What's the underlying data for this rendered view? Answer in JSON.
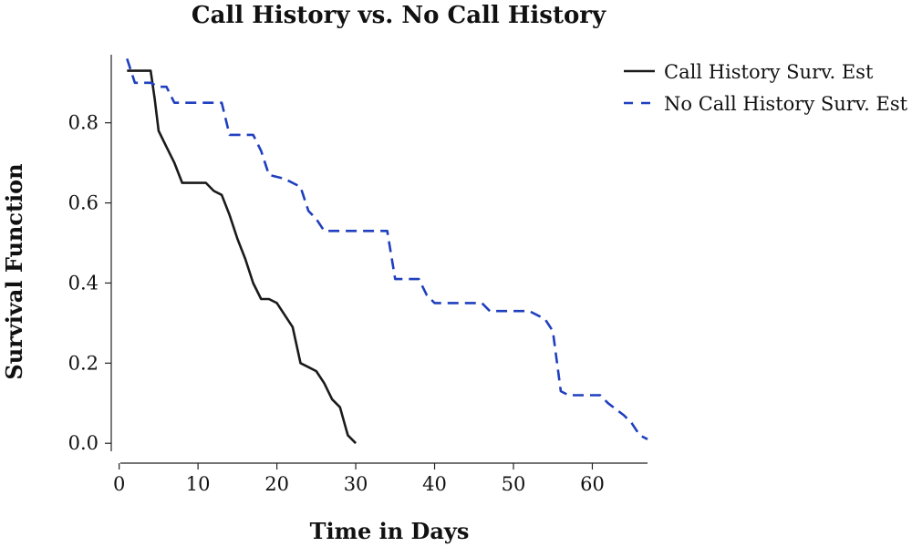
{
  "chart_data": {
    "type": "line",
    "title": "Call History vs. No Call History",
    "xlabel": "Time in Days",
    "ylabel": "Survival Function",
    "xlim": [
      -1,
      67
    ],
    "ylim": [
      -0.02,
      0.97
    ],
    "xticks": [
      0,
      10,
      20,
      30,
      40,
      50,
      60
    ],
    "yticks": [
      0.0,
      0.2,
      0.4,
      0.6,
      0.8
    ],
    "ytick_labels": [
      "0.0",
      "0.2",
      "0.4",
      "0.6",
      "0.8"
    ],
    "grid": false,
    "legend_position": "top-right",
    "series": [
      {
        "name": "Call History Surv. Est",
        "style": "solid",
        "color": "#1a1a1a",
        "x": [
          1,
          4,
          4.5,
          5,
          6,
          7,
          8,
          11,
          12,
          13,
          14,
          15,
          16,
          17,
          18,
          19,
          20,
          21,
          22,
          23,
          24,
          25,
          26,
          27,
          28,
          29,
          30
        ],
        "y": [
          0.93,
          0.93,
          0.86,
          0.78,
          0.74,
          0.7,
          0.65,
          0.65,
          0.63,
          0.62,
          0.57,
          0.51,
          0.46,
          0.4,
          0.36,
          0.36,
          0.35,
          0.32,
          0.29,
          0.2,
          0.19,
          0.18,
          0.15,
          0.11,
          0.09,
          0.02,
          0.0
        ]
      },
      {
        "name": "No Call History Surv. Est",
        "style": "dashed",
        "color": "#1f3fbf",
        "x": [
          1,
          2,
          4,
          5,
          6,
          7,
          13,
          14,
          17,
          18,
          19,
          21,
          22,
          23,
          24,
          25,
          26,
          27,
          34,
          35,
          38,
          39,
          40,
          46,
          47,
          52,
          54,
          55,
          56,
          57,
          61,
          62,
          64,
          65,
          66,
          67
        ],
        "y": [
          0.96,
          0.9,
          0.9,
          0.89,
          0.89,
          0.85,
          0.85,
          0.77,
          0.77,
          0.73,
          0.67,
          0.66,
          0.65,
          0.64,
          0.58,
          0.56,
          0.53,
          0.53,
          0.53,
          0.41,
          0.41,
          0.37,
          0.35,
          0.35,
          0.33,
          0.33,
          0.31,
          0.28,
          0.13,
          0.12,
          0.12,
          0.1,
          0.07,
          0.05,
          0.02,
          0.01
        ]
      }
    ]
  }
}
